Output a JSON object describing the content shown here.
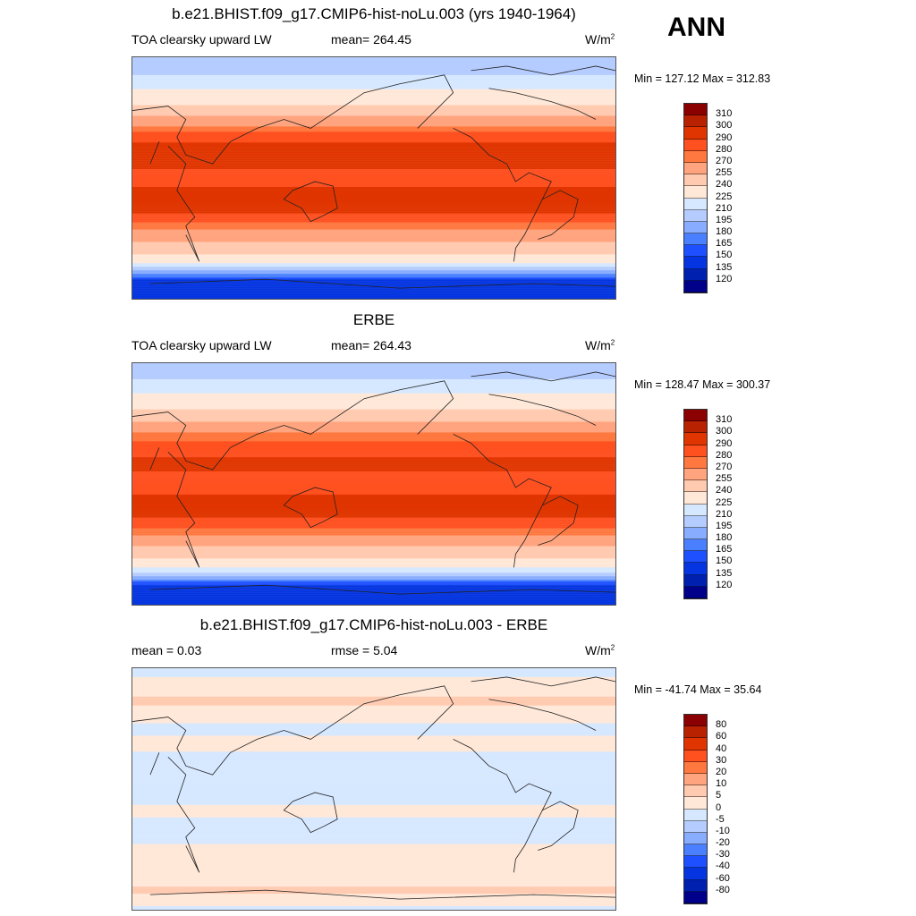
{
  "season": "ANN",
  "palette": [
    "#00008b",
    "#0020b0",
    "#0535e0",
    "#1e50ff",
    "#4a80ff",
    "#88acff",
    "#b4ccff",
    "#d6e8ff",
    "#ffe8d8",
    "#ffcab0",
    "#ffa47e",
    "#ff7840",
    "#ff5020",
    "#e03500",
    "#b82200",
    "#8b0000"
  ],
  "panels": [
    {
      "title": "b.e21.BHIST.f09_g17.CMIP6-hist-noLu.003 (yrs 1940-1964)",
      "left_label": "TOA clearsky upward LW",
      "center_label": "mean= 264.45",
      "units": "W/m",
      "units_sup": "2",
      "minmax": "Min = 127.12 Max = 312.83",
      "levels": [
        "310",
        "300",
        "290",
        "280",
        "270",
        "255",
        "240",
        "225",
        "210",
        "195",
        "180",
        "165",
        "150",
        "135",
        "120"
      ],
      "level_values": [
        120,
        135,
        150,
        165,
        180,
        195,
        210,
        225,
        240,
        255,
        270,
        280,
        290,
        300,
        310
      ],
      "zonal_profile": {
        "lat": [
          90,
          75,
          65,
          55,
          45,
          35,
          25,
          15,
          5,
          -5,
          -15,
          -25,
          -35,
          -45,
          -55,
          -62,
          -68,
          -75,
          -90
        ],
        "value": [
          200,
          212,
          228,
          240,
          258,
          280,
          292,
          296,
          288,
          289,
          298,
          292,
          276,
          258,
          242,
          228,
          200,
          150,
          140
        ]
      }
    },
    {
      "title": "ERBE",
      "left_label": "TOA clearsky upward LW",
      "center_label": "mean= 264.43",
      "units": "W/m",
      "units_sup": "2",
      "minmax": "Min = 128.47 Max = 300.37",
      "levels": [
        "310",
        "300",
        "290",
        "280",
        "270",
        "255",
        "240",
        "225",
        "210",
        "195",
        "180",
        "165",
        "150",
        "135",
        "120"
      ],
      "level_values": [
        120,
        135,
        150,
        165,
        180,
        195,
        210,
        225,
        240,
        255,
        270,
        280,
        290,
        300,
        310
      ],
      "zonal_profile": {
        "lat": [
          90,
          75,
          65,
          55,
          45,
          35,
          25,
          15,
          5,
          -5,
          -15,
          -25,
          -35,
          -45,
          -55,
          -62,
          -68,
          -75,
          -90
        ],
        "value": [
          200,
          214,
          230,
          242,
          258,
          278,
          288,
          292,
          288,
          289,
          294,
          290,
          276,
          256,
          240,
          226,
          195,
          150,
          135
        ]
      }
    },
    {
      "title": "b.e21.BHIST.f09_g17.CMIP6-hist-noLu.003 - ERBE",
      "left_label": "mean =   0.03",
      "center_label": "rmse =   5.04",
      "units": "W/m",
      "units_sup": "2",
      "minmax": "Min = -41.74 Max =  35.64",
      "levels": [
        "80",
        "60",
        "40",
        "30",
        "20",
        "10",
        "5",
        "0",
        "-5",
        "-10",
        "-20",
        "-30",
        "-40",
        "-60",
        "-80"
      ],
      "level_values": [
        -80,
        -60,
        -40,
        -30,
        -20,
        -10,
        -5,
        0,
        5,
        10,
        20,
        30,
        40,
        60,
        80
      ],
      "zonal_profile": {
        "lat": [
          90,
          75,
          65,
          55,
          45,
          35,
          25,
          15,
          5,
          -5,
          -15,
          -25,
          -35,
          -45,
          -55,
          -62,
          -68,
          -75,
          -90
        ],
        "value": [
          -3,
          4,
          6,
          2,
          -2,
          3,
          -2,
          -3,
          -2,
          -3,
          2,
          -2,
          -3,
          2,
          3,
          2,
          4,
          6,
          -2
        ]
      }
    }
  ]
}
